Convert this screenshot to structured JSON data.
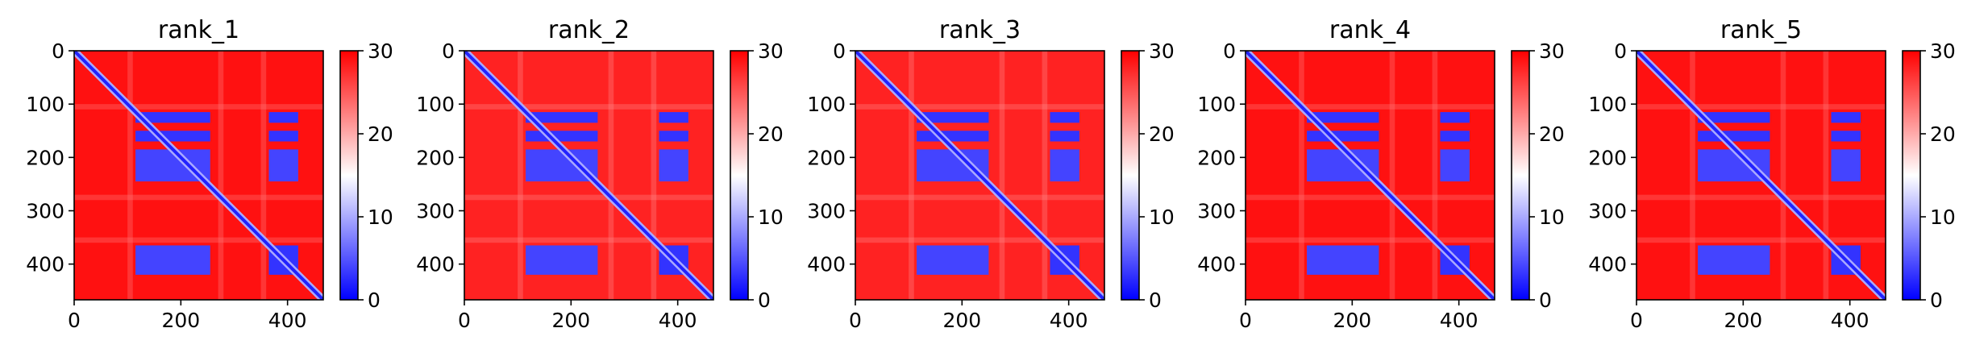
{
  "chart_data": [
    {
      "type": "heatmap",
      "title": "rank_1",
      "xlim": [
        0,
        467
      ],
      "ylim": [
        467,
        0
      ],
      "xticks": [
        0,
        200,
        400
      ],
      "yticks": [
        0,
        100,
        200,
        300,
        400
      ],
      "colorbar": {
        "range": [
          0,
          30
        ],
        "ticks": [
          0,
          10,
          20,
          30
        ],
        "colormap": "bwr",
        "low_color": "#0000ff",
        "mid_color": "#ffffff",
        "high_color": "#ff0000"
      },
      "diagonal_value": 2,
      "background_value": 29,
      "low_blocks": [
        {
          "x": [
            115,
            255
          ],
          "y": [
            115,
            135
          ],
          "value": 3
        },
        {
          "x": [
            115,
            255
          ],
          "y": [
            150,
            170
          ],
          "value": 3
        },
        {
          "x": [
            115,
            255
          ],
          "y": [
            185,
            245
          ],
          "value": 4
        },
        {
          "x": [
            365,
            420
          ],
          "y": [
            115,
            135
          ],
          "value": 3
        },
        {
          "x": [
            365,
            420
          ],
          "y": [
            150,
            170
          ],
          "value": 3
        },
        {
          "x": [
            365,
            420
          ],
          "y": [
            185,
            245
          ],
          "value": 4
        },
        {
          "x": [
            115,
            255
          ],
          "y": [
            365,
            420
          ],
          "value": 4
        },
        {
          "x": [
            365,
            420
          ],
          "y": [
            365,
            420
          ],
          "value": 3
        }
      ]
    },
    {
      "type": "heatmap",
      "title": "rank_2",
      "xlim": [
        0,
        467
      ],
      "ylim": [
        467,
        0
      ],
      "xticks": [
        0,
        200,
        400
      ],
      "yticks": [
        0,
        100,
        200,
        300,
        400
      ],
      "colorbar": {
        "range": [
          0,
          30
        ],
        "ticks": [
          0,
          10,
          20,
          30
        ],
        "colormap": "bwr",
        "low_color": "#0000ff",
        "mid_color": "#ffffff",
        "high_color": "#ff0000"
      },
      "diagonal_value": 2,
      "background_value": 28,
      "low_blocks": [
        {
          "x": [
            115,
            250
          ],
          "y": [
            115,
            135
          ],
          "value": 3
        },
        {
          "x": [
            115,
            250
          ],
          "y": [
            150,
            170
          ],
          "value": 3
        },
        {
          "x": [
            115,
            250
          ],
          "y": [
            185,
            245
          ],
          "value": 4
        },
        {
          "x": [
            365,
            420
          ],
          "y": [
            115,
            135
          ],
          "value": 3
        },
        {
          "x": [
            365,
            420
          ],
          "y": [
            150,
            170
          ],
          "value": 3
        },
        {
          "x": [
            365,
            420
          ],
          "y": [
            185,
            245
          ],
          "value": 4
        },
        {
          "x": [
            115,
            250
          ],
          "y": [
            365,
            420
          ],
          "value": 4
        },
        {
          "x": [
            365,
            420
          ],
          "y": [
            365,
            420
          ],
          "value": 3
        }
      ]
    },
    {
      "type": "heatmap",
      "title": "rank_3",
      "xlim": [
        0,
        467
      ],
      "ylim": [
        467,
        0
      ],
      "xticks": [
        0,
        200,
        400
      ],
      "yticks": [
        0,
        100,
        200,
        300,
        400
      ],
      "colorbar": {
        "range": [
          0,
          30
        ],
        "ticks": [
          0,
          10,
          20,
          30
        ],
        "colormap": "bwr",
        "low_color": "#0000ff",
        "mid_color": "#ffffff",
        "high_color": "#ff0000"
      },
      "diagonal_value": 2,
      "background_value": 28,
      "low_blocks": [
        {
          "x": [
            115,
            250
          ],
          "y": [
            115,
            135
          ],
          "value": 3
        },
        {
          "x": [
            115,
            250
          ],
          "y": [
            150,
            170
          ],
          "value": 3
        },
        {
          "x": [
            115,
            250
          ],
          "y": [
            185,
            245
          ],
          "value": 4
        },
        {
          "x": [
            365,
            420
          ],
          "y": [
            115,
            135
          ],
          "value": 3
        },
        {
          "x": [
            365,
            420
          ],
          "y": [
            150,
            170
          ],
          "value": 3
        },
        {
          "x": [
            365,
            420
          ],
          "y": [
            185,
            245
          ],
          "value": 4
        },
        {
          "x": [
            115,
            250
          ],
          "y": [
            365,
            420
          ],
          "value": 4
        },
        {
          "x": [
            365,
            420
          ],
          "y": [
            365,
            420
          ],
          "value": 3
        }
      ]
    },
    {
      "type": "heatmap",
      "title": "rank_4",
      "xlim": [
        0,
        467
      ],
      "ylim": [
        467,
        0
      ],
      "xticks": [
        0,
        200,
        400
      ],
      "yticks": [
        0,
        100,
        200,
        300,
        400
      ],
      "colorbar": {
        "range": [
          0,
          30
        ],
        "ticks": [
          0,
          10,
          20,
          30
        ],
        "colormap": "bwr",
        "low_color": "#0000ff",
        "mid_color": "#ffffff",
        "high_color": "#ff0000"
      },
      "diagonal_value": 2,
      "background_value": 29,
      "low_blocks": [
        {
          "x": [
            115,
            250
          ],
          "y": [
            115,
            135
          ],
          "value": 3
        },
        {
          "x": [
            115,
            250
          ],
          "y": [
            150,
            170
          ],
          "value": 3
        },
        {
          "x": [
            115,
            250
          ],
          "y": [
            185,
            245
          ],
          "value": 4
        },
        {
          "x": [
            365,
            420
          ],
          "y": [
            115,
            135
          ],
          "value": 3
        },
        {
          "x": [
            365,
            420
          ],
          "y": [
            150,
            170
          ],
          "value": 3
        },
        {
          "x": [
            365,
            420
          ],
          "y": [
            185,
            245
          ],
          "value": 4
        },
        {
          "x": [
            115,
            250
          ],
          "y": [
            365,
            420
          ],
          "value": 4
        },
        {
          "x": [
            365,
            420
          ],
          "y": [
            365,
            420
          ],
          "value": 3
        }
      ]
    },
    {
      "type": "heatmap",
      "title": "rank_5",
      "xlim": [
        0,
        467
      ],
      "ylim": [
        467,
        0
      ],
      "xticks": [
        0,
        200,
        400
      ],
      "yticks": [
        0,
        100,
        200,
        300,
        400
      ],
      "colorbar": {
        "range": [
          0,
          30
        ],
        "ticks": [
          0,
          10,
          20,
          30
        ],
        "colormap": "bwr",
        "low_color": "#0000ff",
        "mid_color": "#ffffff",
        "high_color": "#ff0000"
      },
      "diagonal_value": 2,
      "background_value": 29,
      "low_blocks": [
        {
          "x": [
            115,
            250
          ],
          "y": [
            115,
            135
          ],
          "value": 3
        },
        {
          "x": [
            115,
            250
          ],
          "y": [
            150,
            170
          ],
          "value": 3
        },
        {
          "x": [
            115,
            250
          ],
          "y": [
            185,
            245
          ],
          "value": 4
        },
        {
          "x": [
            365,
            420
          ],
          "y": [
            115,
            135
          ],
          "value": 3
        },
        {
          "x": [
            365,
            420
          ],
          "y": [
            150,
            170
          ],
          "value": 3
        },
        {
          "x": [
            365,
            420
          ],
          "y": [
            185,
            245
          ],
          "value": 4
        },
        {
          "x": [
            115,
            250
          ],
          "y": [
            365,
            420
          ],
          "value": 4
        },
        {
          "x": [
            365,
            420
          ],
          "y": [
            365,
            420
          ],
          "value": 3
        }
      ]
    }
  ]
}
